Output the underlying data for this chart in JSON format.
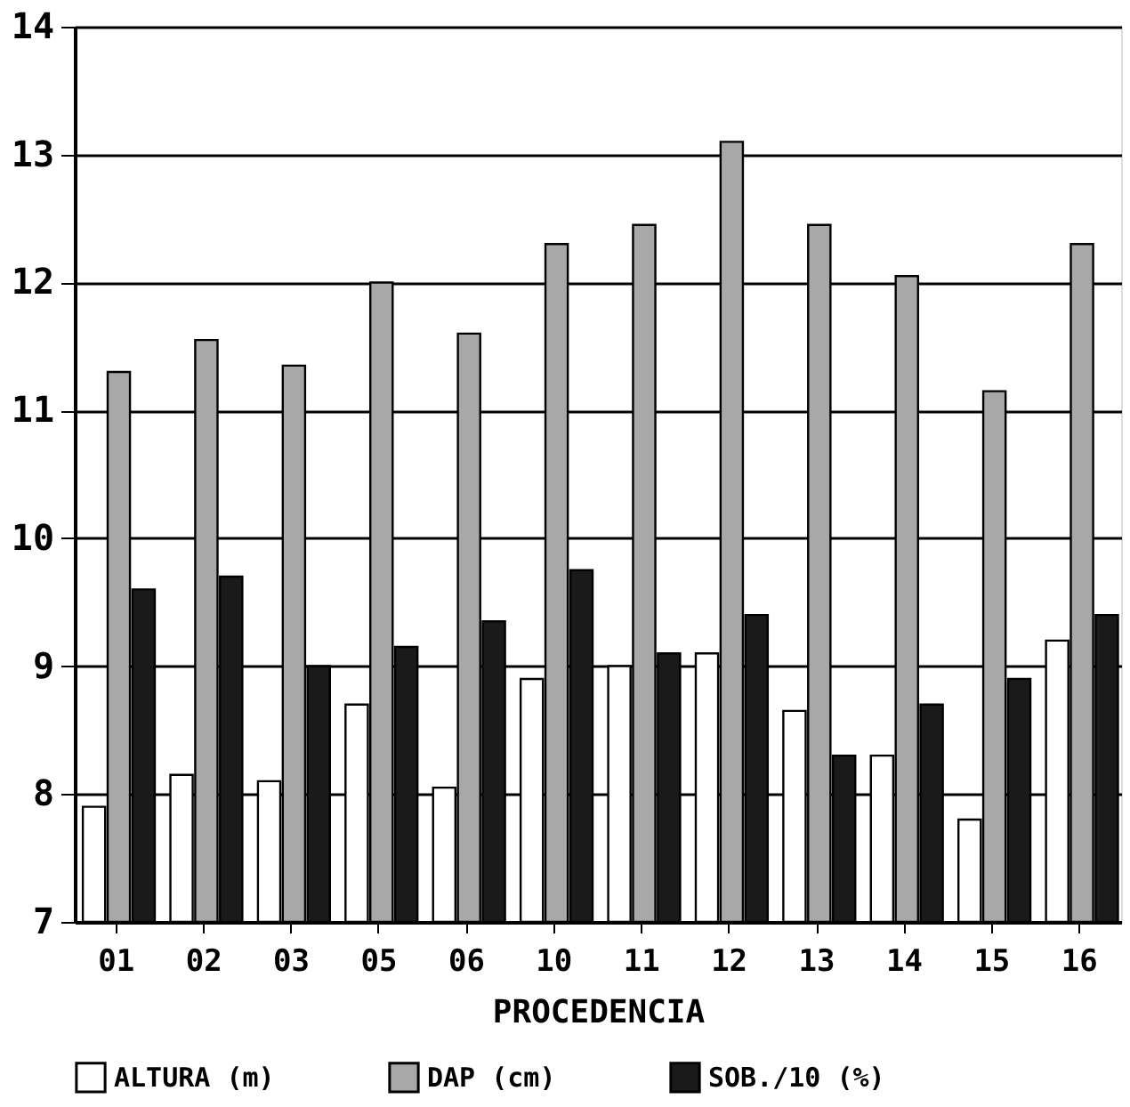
{
  "chart_data": {
    "type": "bar",
    "xlabel": "PROCEDENCIA",
    "categories": [
      "01",
      "02",
      "03",
      "05",
      "06",
      "10",
      "11",
      "12",
      "13",
      "14",
      "15",
      "16"
    ],
    "series": [
      {
        "name": "ALTURA (m)",
        "color": "#ffffff",
        "values": [
          7.9,
          8.15,
          8.1,
          8.7,
          8.05,
          8.9,
          9.0,
          9.1,
          8.65,
          8.3,
          7.8,
          9.2
        ]
      },
      {
        "name": "DAP (cm)",
        "color": "#a8a8a8",
        "values": [
          11.3,
          11.55,
          11.35,
          12.0,
          11.6,
          12.3,
          12.45,
          13.1,
          12.45,
          12.05,
          11.15,
          12.3
        ]
      },
      {
        "name": "SOB./10 (%)",
        "color": "#1a1a1a",
        "values": [
          9.6,
          9.7,
          9.0,
          9.15,
          9.35,
          9.75,
          9.1,
          9.4,
          8.3,
          8.7,
          8.9,
          9.4
        ]
      }
    ],
    "ylim": [
      7,
      14
    ],
    "yticks": [
      7,
      8,
      9,
      10,
      11,
      12,
      13,
      14
    ],
    "grid": "y",
    "legend": "bottom"
  }
}
